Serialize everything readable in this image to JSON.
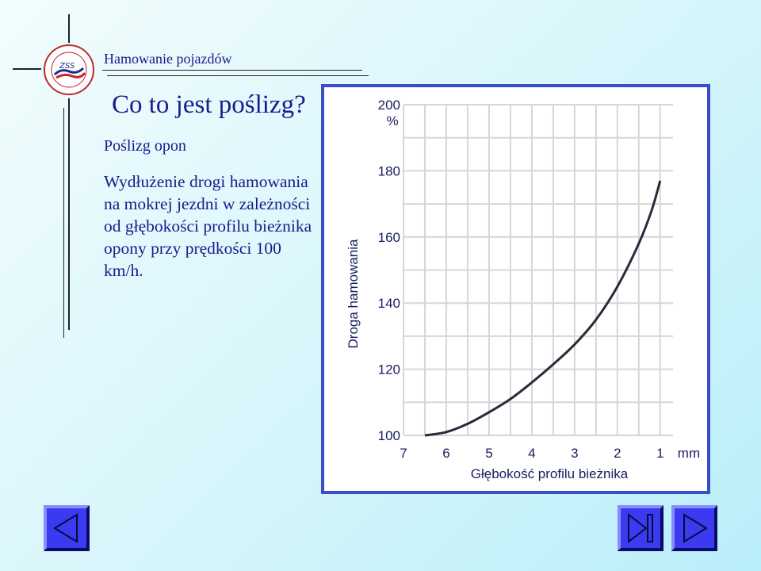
{
  "header": {
    "title": "Hamowanie pojazdów",
    "logo_text": "Zespół Szkół Samochodowych w Bydgoszczy"
  },
  "slide": {
    "title": "Co to jest poślizg?",
    "subtitle": "Poślizg opon",
    "body": "Wydłużenie drogi hamowania na mokrej jezdni w zależności od głębokości profilu bieżnika opony przy prędkości 100 km/h."
  },
  "chart_data": {
    "type": "line",
    "xlabel": "Głębokość profilu bieżnika",
    "x_unit": "mm",
    "ylabel": "Droga hamowania",
    "y_unit": "%",
    "x_ticks": [
      7,
      6,
      5,
      4,
      3,
      2,
      1
    ],
    "y_ticks": [
      100,
      120,
      140,
      160,
      180,
      200
    ],
    "xlim": [
      7,
      0.7
    ],
    "ylim": [
      100,
      200
    ],
    "grid": true,
    "series": [
      {
        "x": [
          6.5,
          6,
          5.5,
          5,
          4.5,
          4,
          3.5,
          3,
          2.5,
          2,
          1.5,
          1.2,
          1
        ],
        "y": [
          100,
          101,
          103.5,
          107,
          111,
          116,
          121.5,
          127.5,
          135,
          145,
          158,
          168,
          177
        ]
      }
    ]
  },
  "colors": {
    "text": "#1a1a8c",
    "frame": "#3a4ec8",
    "grid": "#d6d6d6",
    "curve": "#2a2a3a",
    "button": "#3a3af0"
  },
  "nav": {
    "prev_icon": "triangle-left-icon",
    "last_icon": "skip-end-icon",
    "next_icon": "triangle-right-icon"
  }
}
